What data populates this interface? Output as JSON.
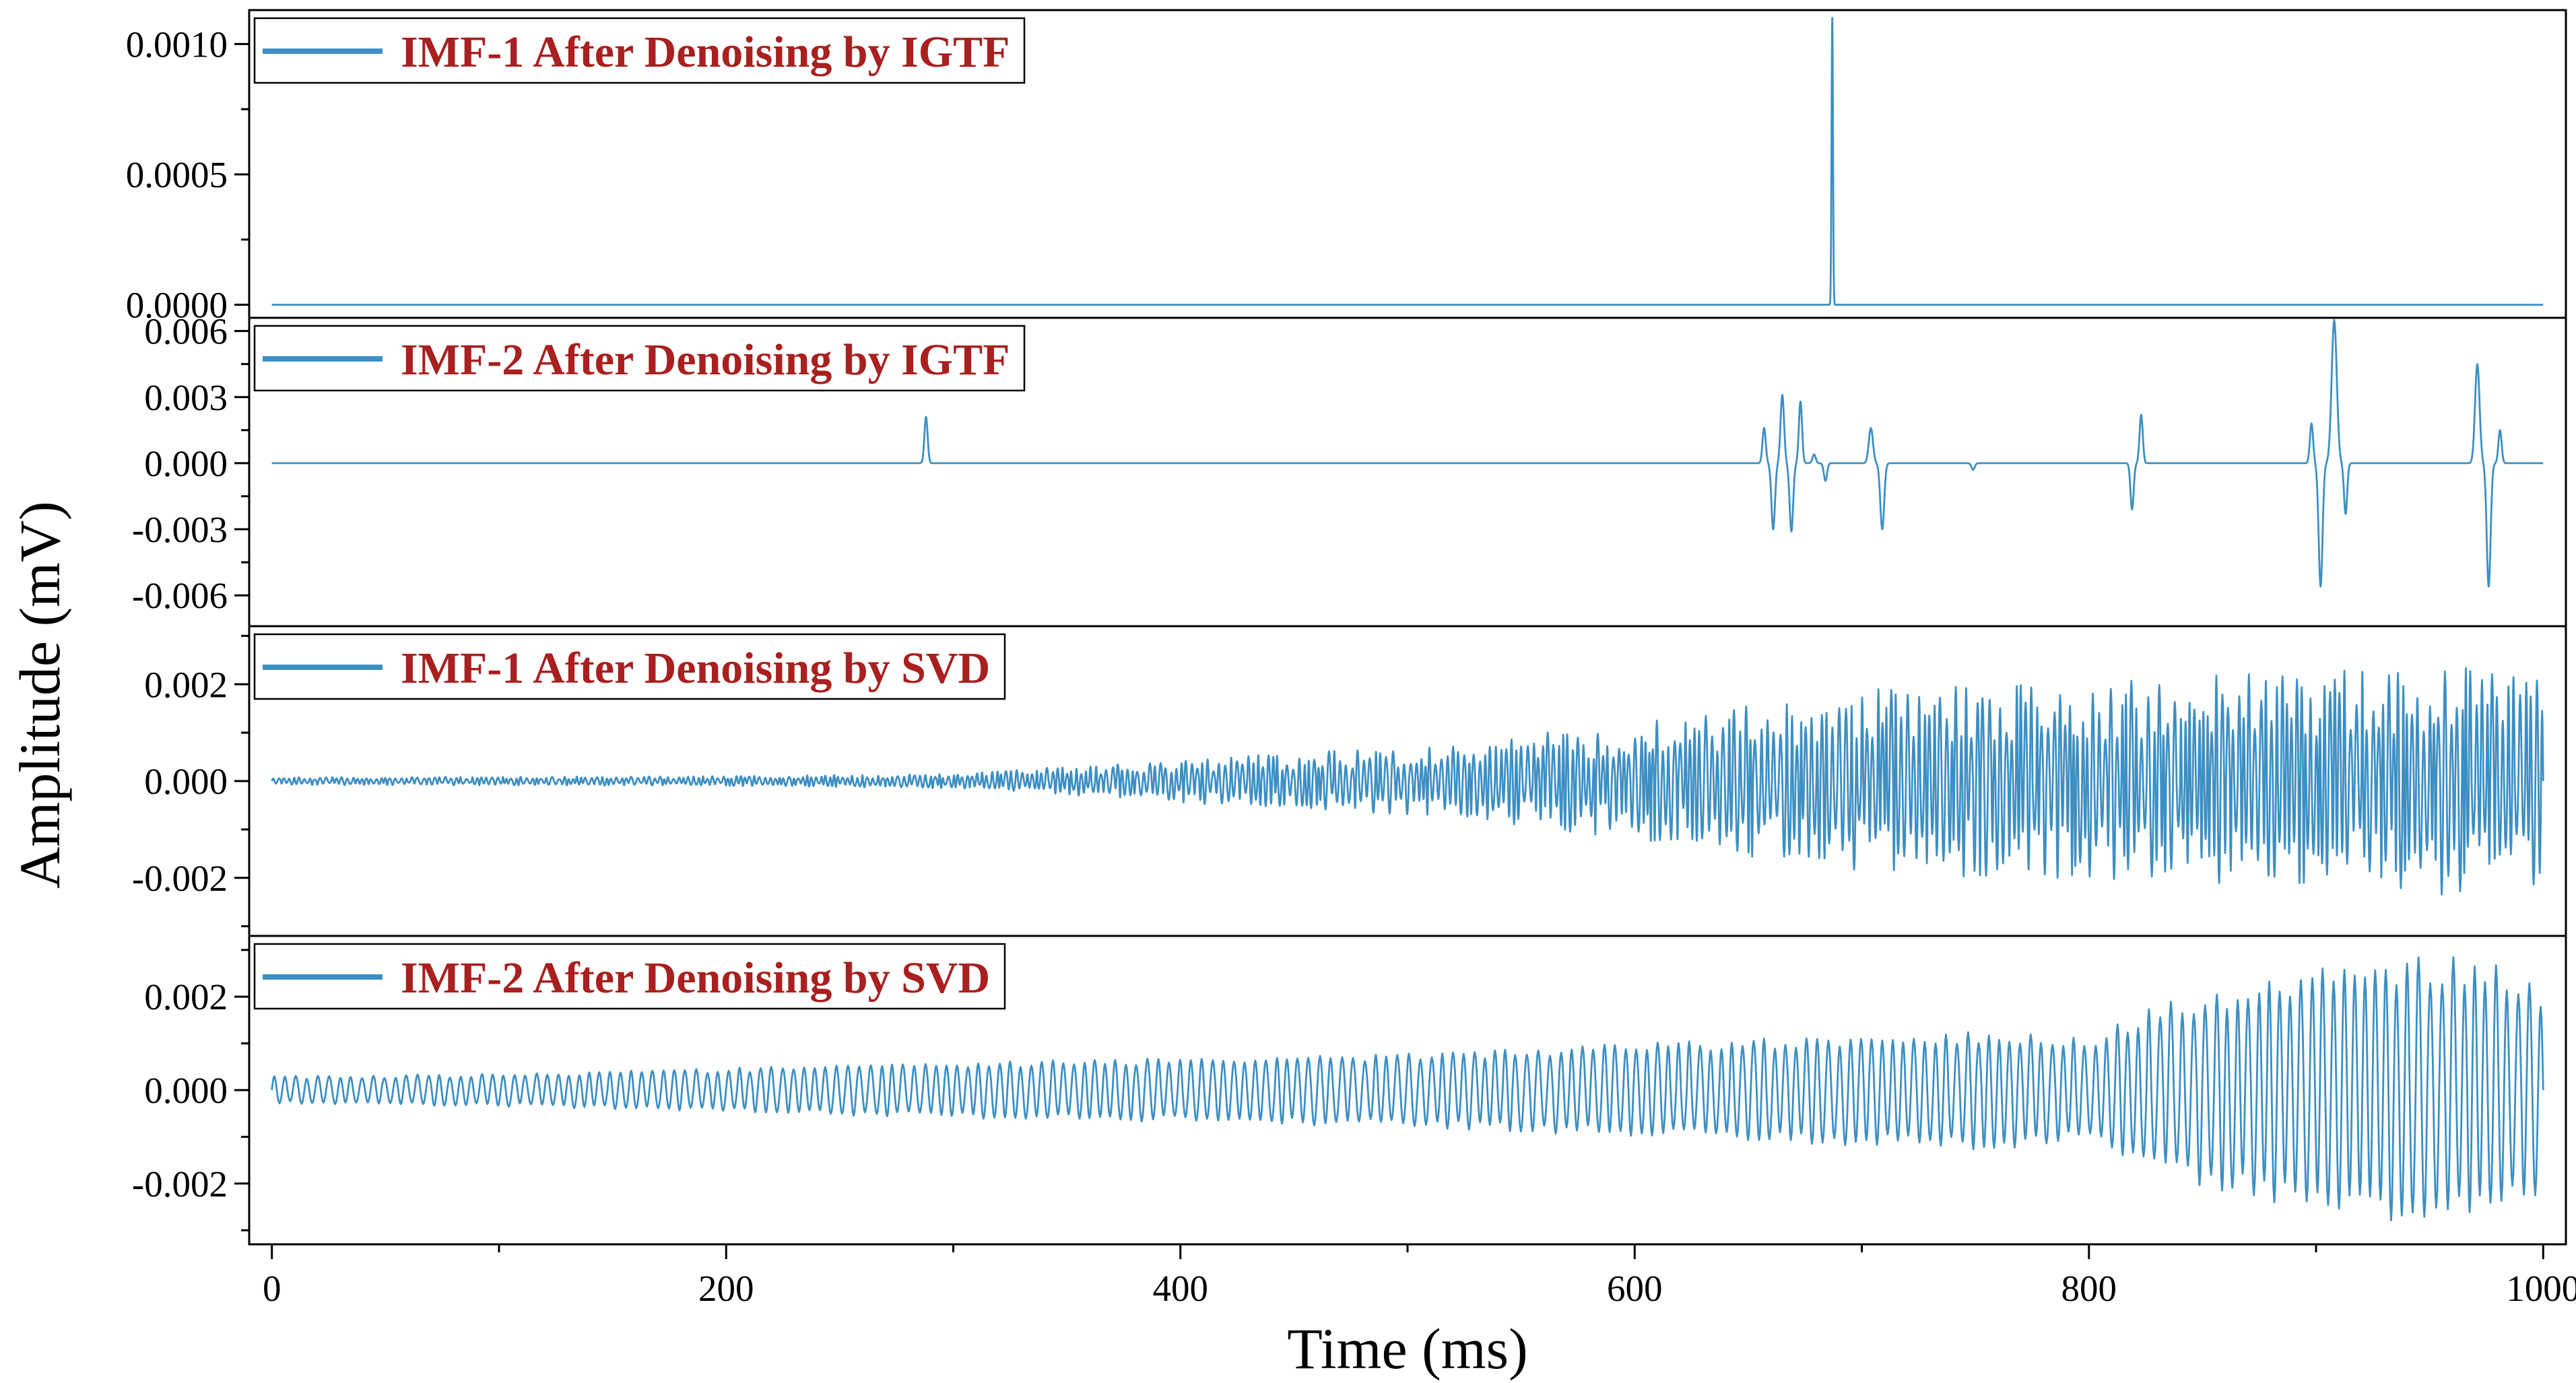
{
  "chart_data": {
    "type": "line",
    "colors": {
      "line": "#3d8fc3",
      "legend_text": "#a8201f",
      "axis": "#000000"
    },
    "xlabel": "Time (ms)",
    "ylabel": "Amplitude (mV)",
    "xlim": [
      -10,
      1010
    ],
    "x_ticks": [
      0,
      200,
      400,
      600,
      800,
      1000
    ],
    "x_tick_labels": [
      "0",
      "200",
      "400",
      "600",
      "800",
      "1000"
    ],
    "x_minor_step": 100,
    "grid": false,
    "legend_position": "top-left",
    "panels": [
      {
        "series_name": "IMF-1 After Denoising by IGTF",
        "ylim": [
          -5e-05,
          0.00113
        ],
        "y_ticks": [
          0,
          0.0005,
          0.001
        ],
        "y_tick_labels": [
          "0.0000",
          "0.0005",
          "0.0010"
        ],
        "signal": {
          "kind": "spikes",
          "range": [
            0,
            1000
          ],
          "events": [
            {
              "t": 687.0,
              "a": 0.0011,
              "w": 0.45,
              "shape": "peak"
            }
          ]
        }
      },
      {
        "series_name": "IMF-2 After Denoising by IGTF",
        "ylim": [
          -0.0074,
          0.0066
        ],
        "y_ticks": [
          -0.006,
          -0.003,
          0,
          0.003,
          0.006
        ],
        "y_tick_labels": [
          "-0.006",
          "-0.003",
          "0.000",
          "0.003",
          "0.006"
        ],
        "signal": {
          "kind": "spikes",
          "range": [
            0,
            1000
          ],
          "events": [
            {
              "t": 288,
              "a": 0.0021,
              "w": 1.0,
              "shape": "peak"
            },
            {
              "t": 657,
              "a": 0.0016,
              "w": 1.0,
              "shape": "wavelet"
            },
            {
              "t": 661,
              "a": -0.003,
              "w": 1.1,
              "shape": "wavelet"
            },
            {
              "t": 665,
              "a": 0.0031,
              "w": 1.1,
              "shape": "wavelet"
            },
            {
              "t": 669,
              "a": -0.0031,
              "w": 1.1,
              "shape": "wavelet"
            },
            {
              "t": 673,
              "a": 0.0028,
              "w": 1.0,
              "shape": "wavelet"
            },
            {
              "t": 679,
              "a": 0.0004,
              "w": 1.0,
              "shape": "wavelet"
            },
            {
              "t": 684,
              "a": -0.0008,
              "w": 1.0,
              "shape": "wavelet"
            },
            {
              "t": 704,
              "a": 0.0016,
              "w": 1.3,
              "shape": "wavelet"
            },
            {
              "t": 709,
              "a": -0.003,
              "w": 1.2,
              "shape": "wavelet"
            },
            {
              "t": 749,
              "a": -0.0003,
              "w": 1.0,
              "shape": "peak"
            },
            {
              "t": 819,
              "a": -0.0021,
              "w": 1.0,
              "shape": "wavelet"
            },
            {
              "t": 823,
              "a": 0.0022,
              "w": 1.0,
              "shape": "wavelet"
            },
            {
              "t": 898,
              "a": 0.0018,
              "w": 1.0,
              "shape": "wavelet"
            },
            {
              "t": 902,
              "a": -0.0056,
              "w": 1.2,
              "shape": "wavelet"
            },
            {
              "t": 908,
              "a": 0.0065,
              "w": 1.6,
              "shape": "wavelet"
            },
            {
              "t": 913,
              "a": -0.0023,
              "w": 1.0,
              "shape": "wavelet"
            },
            {
              "t": 971,
              "a": 0.0045,
              "w": 1.4,
              "shape": "wavelet"
            },
            {
              "t": 976,
              "a": -0.0056,
              "w": 1.2,
              "shape": "wavelet"
            },
            {
              "t": 981,
              "a": 0.0015,
              "w": 1.0,
              "shape": "wavelet"
            }
          ]
        }
      },
      {
        "series_name": "IMF-1 After Denoising by SVD",
        "ylim": [
          -0.0032,
          0.0032
        ],
        "y_ticks": [
          -0.002,
          0,
          0.002
        ],
        "y_tick_labels": [
          "-0.002",
          "0.000",
          "0.002"
        ],
        "signal": {
          "kind": "oscillation",
          "range": [
            0,
            1000
          ],
          "period_ms": 2.3,
          "period_jitter": 0.45,
          "envelope": [
            [
              0,
              8e-05
            ],
            [
              200,
              0.0001
            ],
            [
              300,
              0.00015
            ],
            [
              400,
              0.00045
            ],
            [
              500,
              0.0007
            ],
            [
              600,
              0.0012
            ],
            [
              700,
              0.0019
            ],
            [
              800,
              0.0021
            ],
            [
              900,
              0.0023
            ],
            [
              1000,
              0.0024
            ]
          ],
          "amplitude_jitter": 0.6,
          "seed": 11,
          "end_value": 0
        }
      },
      {
        "series_name": "IMF-2 After Denoising by SVD",
        "ylim": [
          -0.0033,
          0.0033
        ],
        "y_ticks": [
          -0.002,
          0,
          0.002
        ],
        "y_tick_labels": [
          "-0.002",
          "0.000",
          "0.002"
        ],
        "signal": {
          "kind": "oscillation",
          "range": [
            0,
            1000
          ],
          "period_ms": 4.75,
          "period_jitter": 0.12,
          "envelope": [
            [
              0,
              0.0003
            ],
            [
              100,
              0.00035
            ],
            [
              300,
              0.0006
            ],
            [
              500,
              0.0008
            ],
            [
              650,
              0.0011
            ],
            [
              760,
              0.0013
            ],
            [
              800,
              0.0011
            ],
            [
              830,
              0.0018
            ],
            [
              860,
              0.0022
            ],
            [
              900,
              0.0026
            ],
            [
              940,
              0.0029
            ],
            [
              980,
              0.0028
            ],
            [
              1000,
              0.0022
            ]
          ],
          "amplitude_jitter": 0.22,
          "seed": 23,
          "end_value": 0
        }
      }
    ]
  }
}
